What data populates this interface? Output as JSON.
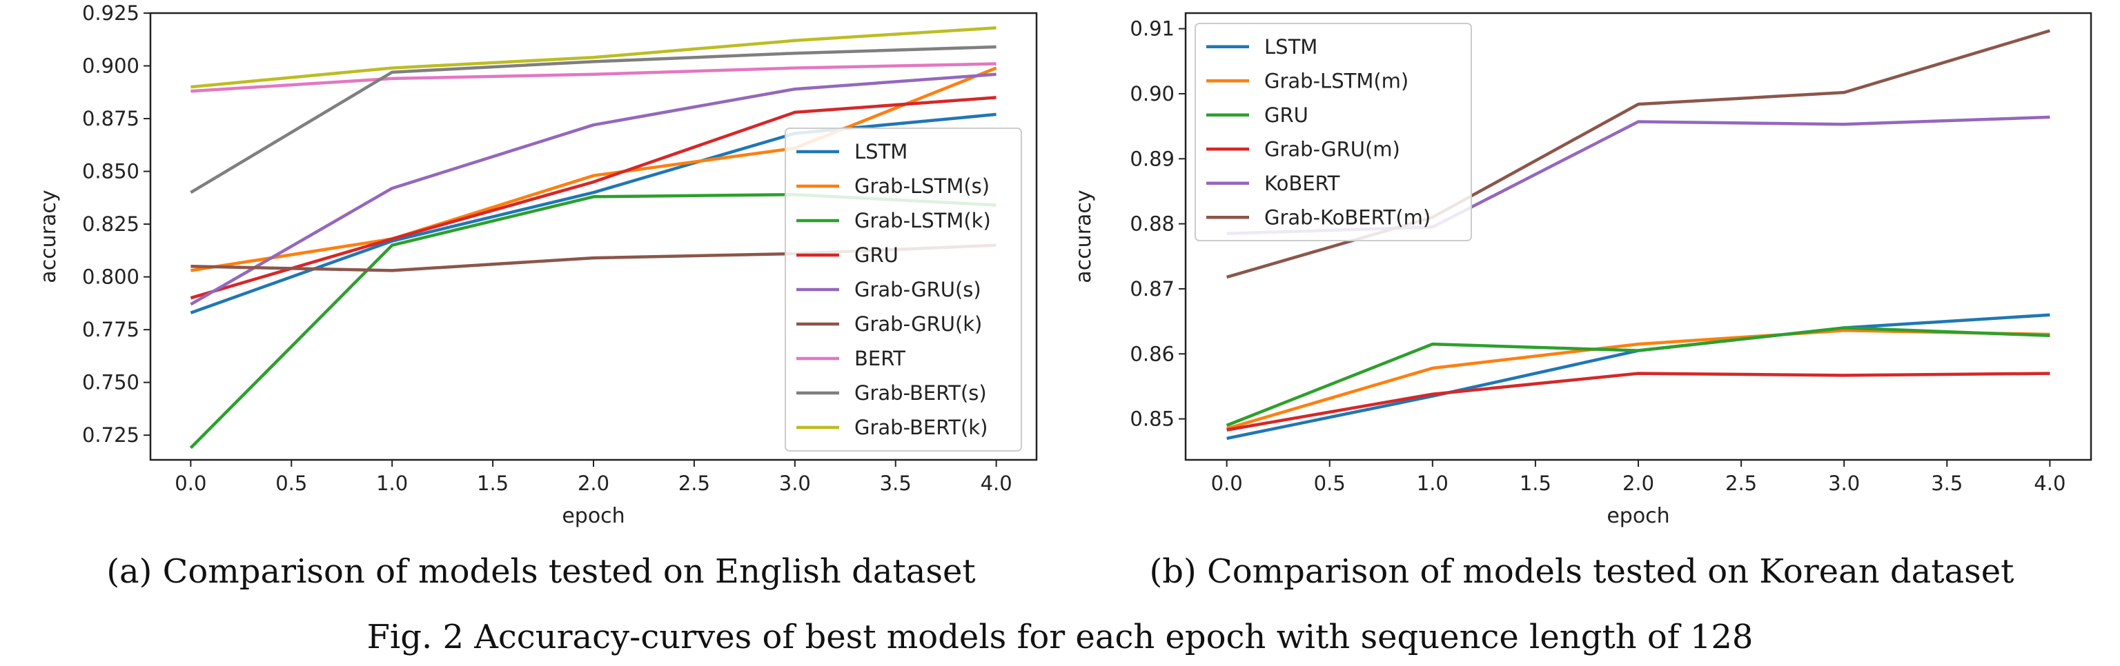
{
  "figure_caption": "Fig. 2 Accuracy-curves of best models for each epoch with sequence length of 128",
  "panels": [
    {
      "caption": "(a) Comparison of models tested on English dataset"
    },
    {
      "caption": "(b) Comparison of models tested on Korean dataset"
    }
  ],
  "chart_data": [
    {
      "type": "line",
      "xlabel": "epoch",
      "ylabel": "accuracy",
      "xlim": [
        -0.2,
        4.2
      ],
      "ylim": [
        0.7133,
        0.925
      ],
      "xticks": [
        "0.0",
        "0.5",
        "1.0",
        "1.5",
        "2.0",
        "2.5",
        "3.0",
        "3.5",
        "4.0"
      ],
      "yticks": [
        "0.725",
        "0.750",
        "0.775",
        "0.800",
        "0.825",
        "0.850",
        "0.875",
        "0.900",
        "0.925"
      ],
      "legend_position": "lower-right",
      "grid": false,
      "x": [
        0,
        1,
        2,
        3,
        4
      ],
      "series": [
        {
          "name": "LSTM",
          "color": "#1f77b4",
          "values": [
            0.783,
            0.817,
            0.84,
            0.868,
            0.877
          ]
        },
        {
          "name": "Grab-LSTM(s)",
          "color": "#ff7f0e",
          "values": [
            0.803,
            0.818,
            0.848,
            0.861,
            0.899
          ]
        },
        {
          "name": "Grab-LSTM(k)",
          "color": "#2ca02c",
          "values": [
            0.719,
            0.815,
            0.838,
            0.839,
            0.834
          ]
        },
        {
          "name": "GRU",
          "color": "#d62728",
          "values": [
            0.79,
            0.818,
            0.845,
            0.878,
            0.885
          ]
        },
        {
          "name": "Grab-GRU(s)",
          "color": "#9467bd",
          "values": [
            0.787,
            0.842,
            0.872,
            0.889,
            0.896
          ]
        },
        {
          "name": "Grab-GRU(k)",
          "color": "#8c564b",
          "values": [
            0.805,
            0.803,
            0.809,
            0.811,
            0.815
          ]
        },
        {
          "name": "BERT",
          "color": "#e377c2",
          "values": [
            0.888,
            0.894,
            0.896,
            0.899,
            0.901
          ]
        },
        {
          "name": "Grab-BERT(s)",
          "color": "#7f7f7f",
          "values": [
            0.84,
            0.897,
            0.902,
            0.906,
            0.909
          ]
        },
        {
          "name": "Grab-BERT(k)",
          "color": "#bcbd22",
          "values": [
            0.89,
            0.899,
            0.904,
            0.912,
            0.918
          ]
        }
      ]
    },
    {
      "type": "line",
      "xlabel": "epoch",
      "ylabel": "accuracy",
      "xlim": [
        -0.2,
        4.2
      ],
      "ylim": [
        0.8437,
        0.9124
      ],
      "xticks": [
        "0.0",
        "0.5",
        "1.0",
        "1.5",
        "2.0",
        "2.5",
        "3.0",
        "3.5",
        "4.0"
      ],
      "yticks": [
        "0.85",
        "0.86",
        "0.87",
        "0.88",
        "0.89",
        "0.90",
        "0.91"
      ],
      "legend_position": "upper-left",
      "grid": false,
      "x": [
        0,
        1,
        2,
        3,
        4
      ],
      "series": [
        {
          "name": "LSTM",
          "color": "#1f77b4",
          "values": [
            0.847,
            0.8535,
            0.8605,
            0.864,
            0.866
          ]
        },
        {
          "name": "Grab-LSTM(m)",
          "color": "#ff7f0e",
          "values": [
            0.8485,
            0.8578,
            0.8615,
            0.8636,
            0.863
          ]
        },
        {
          "name": "GRU",
          "color": "#2ca02c",
          "values": [
            0.849,
            0.8615,
            0.8605,
            0.864,
            0.8628
          ]
        },
        {
          "name": "Grab-GRU(m)",
          "color": "#d62728",
          "values": [
            0.8483,
            0.8538,
            0.857,
            0.8567,
            0.857
          ]
        },
        {
          "name": "KoBERT",
          "color": "#9467bd",
          "values": [
            0.8785,
            0.8795,
            0.8957,
            0.8953,
            0.8964
          ]
        },
        {
          "name": "Grab-KoBERT(m)",
          "color": "#8c564b",
          "values": [
            0.8718,
            0.881,
            0.8984,
            0.9002,
            0.9097
          ]
        }
      ]
    }
  ]
}
